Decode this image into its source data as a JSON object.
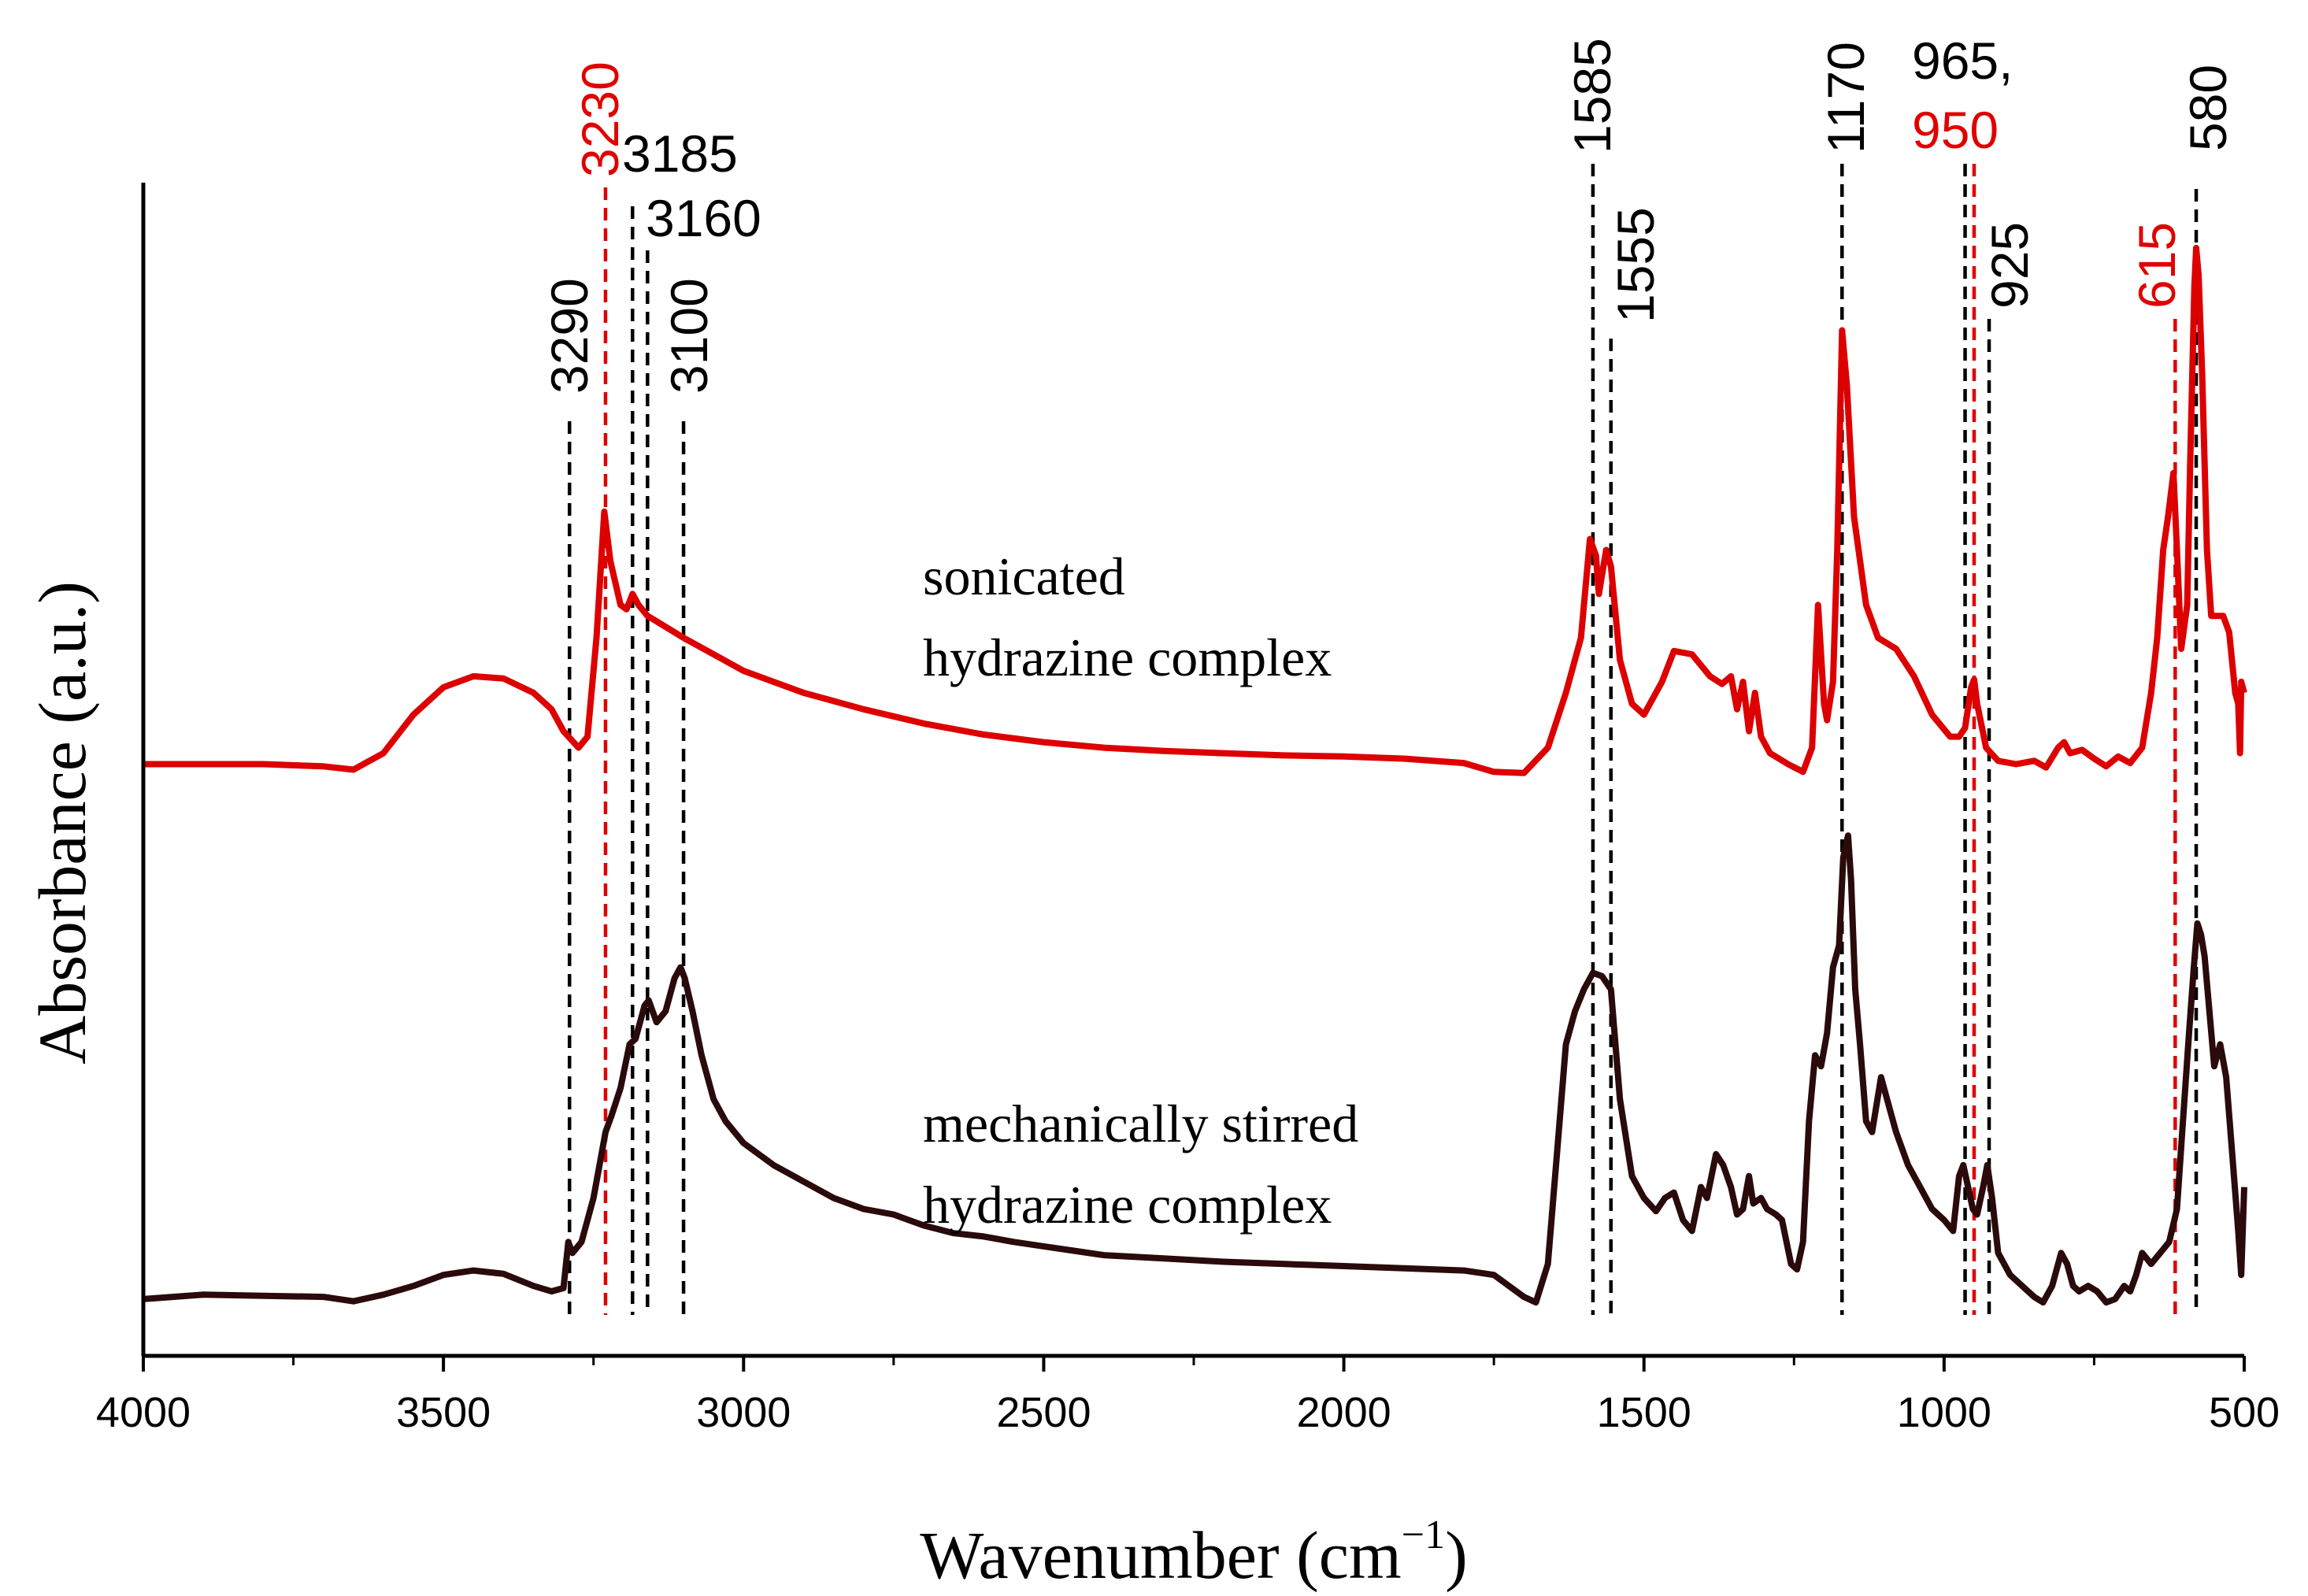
{
  "chart_data": {
    "type": "line",
    "title": "",
    "xlabel": "Wavenumber (cm−1)",
    "xlabel_main": "Wavenumber (cm",
    "xlabel_sup": "−1",
    "xlabel_close": ")",
    "ylabel": "Absorbance (a.u.)",
    "xlim": [
      4000,
      500
    ],
    "x_reversed": true,
    "y_ticks_shown": false,
    "x_ticks": [
      4000,
      3500,
      3000,
      2500,
      2000,
      1500,
      1000,
      500
    ],
    "x_tick_labels": [
      "4000",
      "3500",
      "3000",
      "2500",
      "2000",
      "1500",
      "1000",
      "500"
    ],
    "colors": {
      "sonicated": "#dd0000",
      "stirred": "#2a0a0a",
      "black_marker": "#000000",
      "red_marker": "#e00000"
    },
    "series": [
      {
        "name": "sonicated hydrazine complex",
        "label_line1": "sonicated",
        "label_line2": "hydrazine complex",
        "color": "#dd0000",
        "points": [
          [
            4000,
            0.505
          ],
          [
            3800,
            0.505
          ],
          [
            3700,
            0.503
          ],
          [
            3650,
            0.5
          ],
          [
            3600,
            0.515
          ],
          [
            3550,
            0.55
          ],
          [
            3500,
            0.575
          ],
          [
            3450,
            0.585
          ],
          [
            3400,
            0.583
          ],
          [
            3350,
            0.57
          ],
          [
            3320,
            0.555
          ],
          [
            3300,
            0.535
          ],
          [
            3275,
            0.52
          ],
          [
            3260,
            0.53
          ],
          [
            3245,
            0.62
          ],
          [
            3232,
            0.735
          ],
          [
            3222,
            0.69
          ],
          [
            3205,
            0.65
          ],
          [
            3195,
            0.646
          ],
          [
            3185,
            0.66
          ],
          [
            3175,
            0.65
          ],
          [
            3160,
            0.64
          ],
          [
            3130,
            0.63
          ],
          [
            3100,
            0.62
          ],
          [
            3050,
            0.605
          ],
          [
            3000,
            0.59
          ],
          [
            2900,
            0.57
          ],
          [
            2800,
            0.555
          ],
          [
            2700,
            0.542
          ],
          [
            2600,
            0.532
          ],
          [
            2500,
            0.525
          ],
          [
            2400,
            0.52
          ],
          [
            2300,
            0.517
          ],
          [
            2200,
            0.515
          ],
          [
            2100,
            0.513
          ],
          [
            2000,
            0.512
          ],
          [
            1900,
            0.51
          ],
          [
            1800,
            0.506
          ],
          [
            1750,
            0.498
          ],
          [
            1700,
            0.497
          ],
          [
            1660,
            0.52
          ],
          [
            1630,
            0.57
          ],
          [
            1605,
            0.62
          ],
          [
            1590,
            0.71
          ],
          [
            1580,
            0.695
          ],
          [
            1575,
            0.66
          ],
          [
            1563,
            0.7
          ],
          [
            1555,
            0.685
          ],
          [
            1540,
            0.6
          ],
          [
            1520,
            0.56
          ],
          [
            1500,
            0.55
          ],
          [
            1470,
            0.58
          ],
          [
            1450,
            0.608
          ],
          [
            1420,
            0.605
          ],
          [
            1390,
            0.585
          ],
          [
            1370,
            0.578
          ],
          [
            1355,
            0.585
          ],
          [
            1345,
            0.555
          ],
          [
            1335,
            0.58
          ],
          [
            1325,
            0.535
          ],
          [
            1315,
            0.57
          ],
          [
            1305,
            0.53
          ],
          [
            1290,
            0.515
          ],
          [
            1260,
            0.505
          ],
          [
            1235,
            0.498
          ],
          [
            1220,
            0.52
          ],
          [
            1210,
            0.65
          ],
          [
            1200,
            0.56
          ],
          [
            1195,
            0.545
          ],
          [
            1185,
            0.58
          ],
          [
            1178,
            0.7
          ],
          [
            1170,
            0.9
          ],
          [
            1162,
            0.85
          ],
          [
            1150,
            0.73
          ],
          [
            1130,
            0.65
          ],
          [
            1110,
            0.62
          ],
          [
            1080,
            0.61
          ],
          [
            1050,
            0.585
          ],
          [
            1020,
            0.55
          ],
          [
            990,
            0.53
          ],
          [
            975,
            0.53
          ],
          [
            965,
            0.538
          ],
          [
            955,
            0.575
          ],
          [
            950,
            0.582
          ],
          [
            945,
            0.56
          ],
          [
            930,
            0.52
          ],
          [
            910,
            0.508
          ],
          [
            880,
            0.505
          ],
          [
            850,
            0.508
          ],
          [
            830,
            0.502
          ],
          [
            810,
            0.52
          ],
          [
            800,
            0.525
          ],
          [
            790,
            0.515
          ],
          [
            770,
            0.518
          ],
          [
            750,
            0.51
          ],
          [
            730,
            0.503
          ],
          [
            710,
            0.512
          ],
          [
            690,
            0.506
          ],
          [
            670,
            0.52
          ],
          [
            655,
            0.57
          ],
          [
            645,
            0.62
          ],
          [
            635,
            0.7
          ],
          [
            627,
            0.73
          ],
          [
            618,
            0.77
          ],
          [
            612,
            0.7
          ],
          [
            605,
            0.61
          ],
          [
            595,
            0.65
          ],
          [
            590,
            0.78
          ],
          [
            583,
            0.94
          ],
          [
            580,
            0.975
          ],
          [
            576,
            0.95
          ],
          [
            570,
            0.86
          ],
          [
            562,
            0.7
          ],
          [
            555,
            0.64
          ],
          [
            545,
            0.64
          ],
          [
            535,
            0.64
          ],
          [
            525,
            0.625
          ],
          [
            515,
            0.57
          ],
          [
            510,
            0.56
          ],
          [
            507,
            0.515
          ],
          [
            505,
            0.58
          ],
          [
            500,
            0.57
          ]
        ]
      },
      {
        "name": "mechanically stirred hydrazine complex",
        "label_line1": "mechanically stirred",
        "label_line2": "hydrazine complex",
        "color": "#2a0a0a",
        "points": [
          [
            4000,
            0.018
          ],
          [
            3900,
            0.022
          ],
          [
            3800,
            0.021
          ],
          [
            3700,
            0.02
          ],
          [
            3650,
            0.016
          ],
          [
            3600,
            0.022
          ],
          [
            3550,
            0.03
          ],
          [
            3500,
            0.04
          ],
          [
            3450,
            0.044
          ],
          [
            3400,
            0.041
          ],
          [
            3350,
            0.03
          ],
          [
            3320,
            0.025
          ],
          [
            3300,
            0.028
          ],
          [
            3292,
            0.07
          ],
          [
            3285,
            0.06
          ],
          [
            3270,
            0.07
          ],
          [
            3250,
            0.11
          ],
          [
            3230,
            0.17
          ],
          [
            3220,
            0.185
          ],
          [
            3205,
            0.21
          ],
          [
            3190,
            0.25
          ],
          [
            3180,
            0.255
          ],
          [
            3165,
            0.285
          ],
          [
            3158,
            0.29
          ],
          [
            3145,
            0.27
          ],
          [
            3130,
            0.28
          ],
          [
            3115,
            0.31
          ],
          [
            3105,
            0.32
          ],
          [
            3098,
            0.31
          ],
          [
            3085,
            0.28
          ],
          [
            3070,
            0.24
          ],
          [
            3050,
            0.2
          ],
          [
            3030,
            0.18
          ],
          [
            3000,
            0.16
          ],
          [
            2950,
            0.14
          ],
          [
            2900,
            0.125
          ],
          [
            2850,
            0.11
          ],
          [
            2800,
            0.1
          ],
          [
            2750,
            0.095
          ],
          [
            2700,
            0.085
          ],
          [
            2650,
            0.078
          ],
          [
            2600,
            0.075
          ],
          [
            2550,
            0.07
          ],
          [
            2500,
            0.066
          ],
          [
            2450,
            0.062
          ],
          [
            2400,
            0.058
          ],
          [
            2300,
            0.055
          ],
          [
            2200,
            0.052
          ],
          [
            2100,
            0.05
          ],
          [
            2000,
            0.048
          ],
          [
            1900,
            0.046
          ],
          [
            1800,
            0.044
          ],
          [
            1750,
            0.04
          ],
          [
            1700,
            0.02
          ],
          [
            1680,
            0.015
          ],
          [
            1660,
            0.05
          ],
          [
            1645,
            0.15
          ],
          [
            1630,
            0.25
          ],
          [
            1615,
            0.28
          ],
          [
            1600,
            0.3
          ],
          [
            1585,
            0.315
          ],
          [
            1570,
            0.312
          ],
          [
            1555,
            0.3
          ],
          [
            1540,
            0.2
          ],
          [
            1520,
            0.13
          ],
          [
            1500,
            0.11
          ],
          [
            1480,
            0.098
          ],
          [
            1465,
            0.11
          ],
          [
            1450,
            0.115
          ],
          [
            1435,
            0.09
          ],
          [
            1420,
            0.08
          ],
          [
            1405,
            0.12
          ],
          [
            1395,
            0.11
          ],
          [
            1380,
            0.15
          ],
          [
            1368,
            0.14
          ],
          [
            1355,
            0.12
          ],
          [
            1345,
            0.095
          ],
          [
            1335,
            0.1
          ],
          [
            1325,
            0.13
          ],
          [
            1318,
            0.105
          ],
          [
            1305,
            0.11
          ],
          [
            1295,
            0.1
          ],
          [
            1280,
            0.095
          ],
          [
            1270,
            0.09
          ],
          [
            1255,
            0.05
          ],
          [
            1245,
            0.045
          ],
          [
            1235,
            0.07
          ],
          [
            1225,
            0.18
          ],
          [
            1215,
            0.24
          ],
          [
            1205,
            0.23
          ],
          [
            1195,
            0.26
          ],
          [
            1185,
            0.32
          ],
          [
            1175,
            0.34
          ],
          [
            1168,
            0.42
          ],
          [
            1160,
            0.44
          ],
          [
            1155,
            0.4
          ],
          [
            1148,
            0.3
          ],
          [
            1140,
            0.25
          ],
          [
            1130,
            0.18
          ],
          [
            1120,
            0.17
          ],
          [
            1105,
            0.22
          ],
          [
            1095,
            0.2
          ],
          [
            1080,
            0.17
          ],
          [
            1060,
            0.14
          ],
          [
            1040,
            0.12
          ],
          [
            1020,
            0.1
          ],
          [
            1000,
            0.09
          ],
          [
            985,
            0.08
          ],
          [
            975,
            0.13
          ],
          [
            968,
            0.14
          ],
          [
            960,
            0.12
          ],
          [
            952,
            0.1
          ],
          [
            945,
            0.095
          ],
          [
            935,
            0.12
          ],
          [
            928,
            0.14
          ],
          [
            920,
            0.11
          ],
          [
            910,
            0.06
          ],
          [
            890,
            0.04
          ],
          [
            870,
            0.03
          ],
          [
            850,
            0.02
          ],
          [
            835,
            0.015
          ],
          [
            820,
            0.03
          ],
          [
            805,
            0.06
          ],
          [
            795,
            0.05
          ],
          [
            785,
            0.03
          ],
          [
            775,
            0.025
          ],
          [
            760,
            0.03
          ],
          [
            745,
            0.025
          ],
          [
            730,
            0.015
          ],
          [
            715,
            0.018
          ],
          [
            700,
            0.03
          ],
          [
            690,
            0.025
          ],
          [
            680,
            0.04
          ],
          [
            670,
            0.06
          ],
          [
            655,
            0.05
          ],
          [
            640,
            0.06
          ],
          [
            625,
            0.07
          ],
          [
            612,
            0.1
          ],
          [
            602,
            0.18
          ],
          [
            592,
            0.26
          ],
          [
            584,
            0.32
          ],
          [
            578,
            0.36
          ],
          [
            572,
            0.35
          ],
          [
            566,
            0.33
          ],
          [
            558,
            0.28
          ],
          [
            550,
            0.23
          ],
          [
            540,
            0.25
          ],
          [
            530,
            0.22
          ],
          [
            520,
            0.15
          ],
          [
            510,
            0.08
          ],
          [
            505,
            0.04
          ],
          [
            500,
            0.12
          ]
        ]
      }
    ],
    "peak_markers": [
      {
        "label": "3290",
        "x": 3290,
        "color": "black",
        "rotated": true
      },
      {
        "label": "3230",
        "x": 3230,
        "color": "red",
        "rotated": true
      },
      {
        "label": "3185",
        "x": 3185,
        "color": "black",
        "rotated": false
      },
      {
        "label": "3160",
        "x": 3160,
        "color": "black",
        "rotated": false
      },
      {
        "label": "3100",
        "x": 3100,
        "color": "black",
        "rotated": true
      },
      {
        "label": "1585",
        "x": 1585,
        "color": "black",
        "rotated": true
      },
      {
        "label": "1555",
        "x": 1555,
        "color": "black",
        "rotated": true
      },
      {
        "label": "1170",
        "x": 1170,
        "color": "black",
        "rotated": true
      },
      {
        "label": "965,",
        "x": 965,
        "color": "black",
        "rotated": false
      },
      {
        "label": "950",
        "x": 950,
        "color": "red",
        "rotated": false
      },
      {
        "label": "925",
        "x": 925,
        "color": "black",
        "rotated": true
      },
      {
        "label": "615",
        "x": 615,
        "color": "red",
        "rotated": true
      },
      {
        "label": "580",
        "x": 580,
        "color": "black",
        "rotated": true
      }
    ]
  }
}
